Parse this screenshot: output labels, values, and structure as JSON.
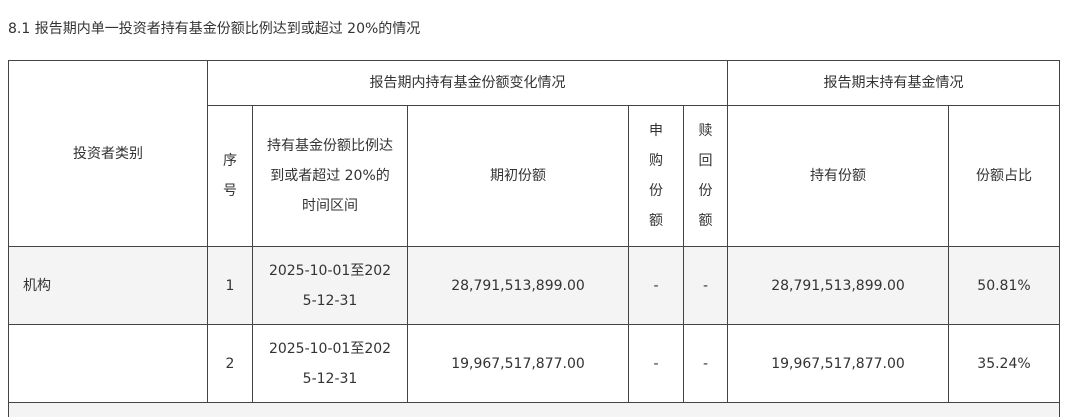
{
  "title": "8.1  报告期内单一投资者持有基金份额比例达到或超过 20%的情况",
  "table": {
    "headers": {
      "investor_type": "投资者类别",
      "group_change": "报告期内持有基金份额变化情况",
      "group_end": "报告期末持有基金情况",
      "seq": "序号",
      "period": "持有基金份额比例达到或者超过 20%的时间区间",
      "initial": "期初份额",
      "subscribe": "申购份额",
      "redeem": "赎回份额",
      "held": "持有份额",
      "ratio": "份额占比"
    },
    "rows": [
      {
        "investor_type": "机构",
        "seq": "1",
        "period": "2025-10-01至2025-12-31",
        "initial": "28,791,513,899.00",
        "subscribe": "-",
        "redeem": "-",
        "held": "28,791,513,899.00",
        "ratio": "50.81%"
      },
      {
        "investor_type": "",
        "seq": "2",
        "period": "2025-10-01至2025-12-31",
        "initial": "19,967,517,877.00",
        "subscribe": "-",
        "redeem": "-",
        "held": "19,967,517,877.00",
        "ratio": "35.24%"
      }
    ]
  }
}
